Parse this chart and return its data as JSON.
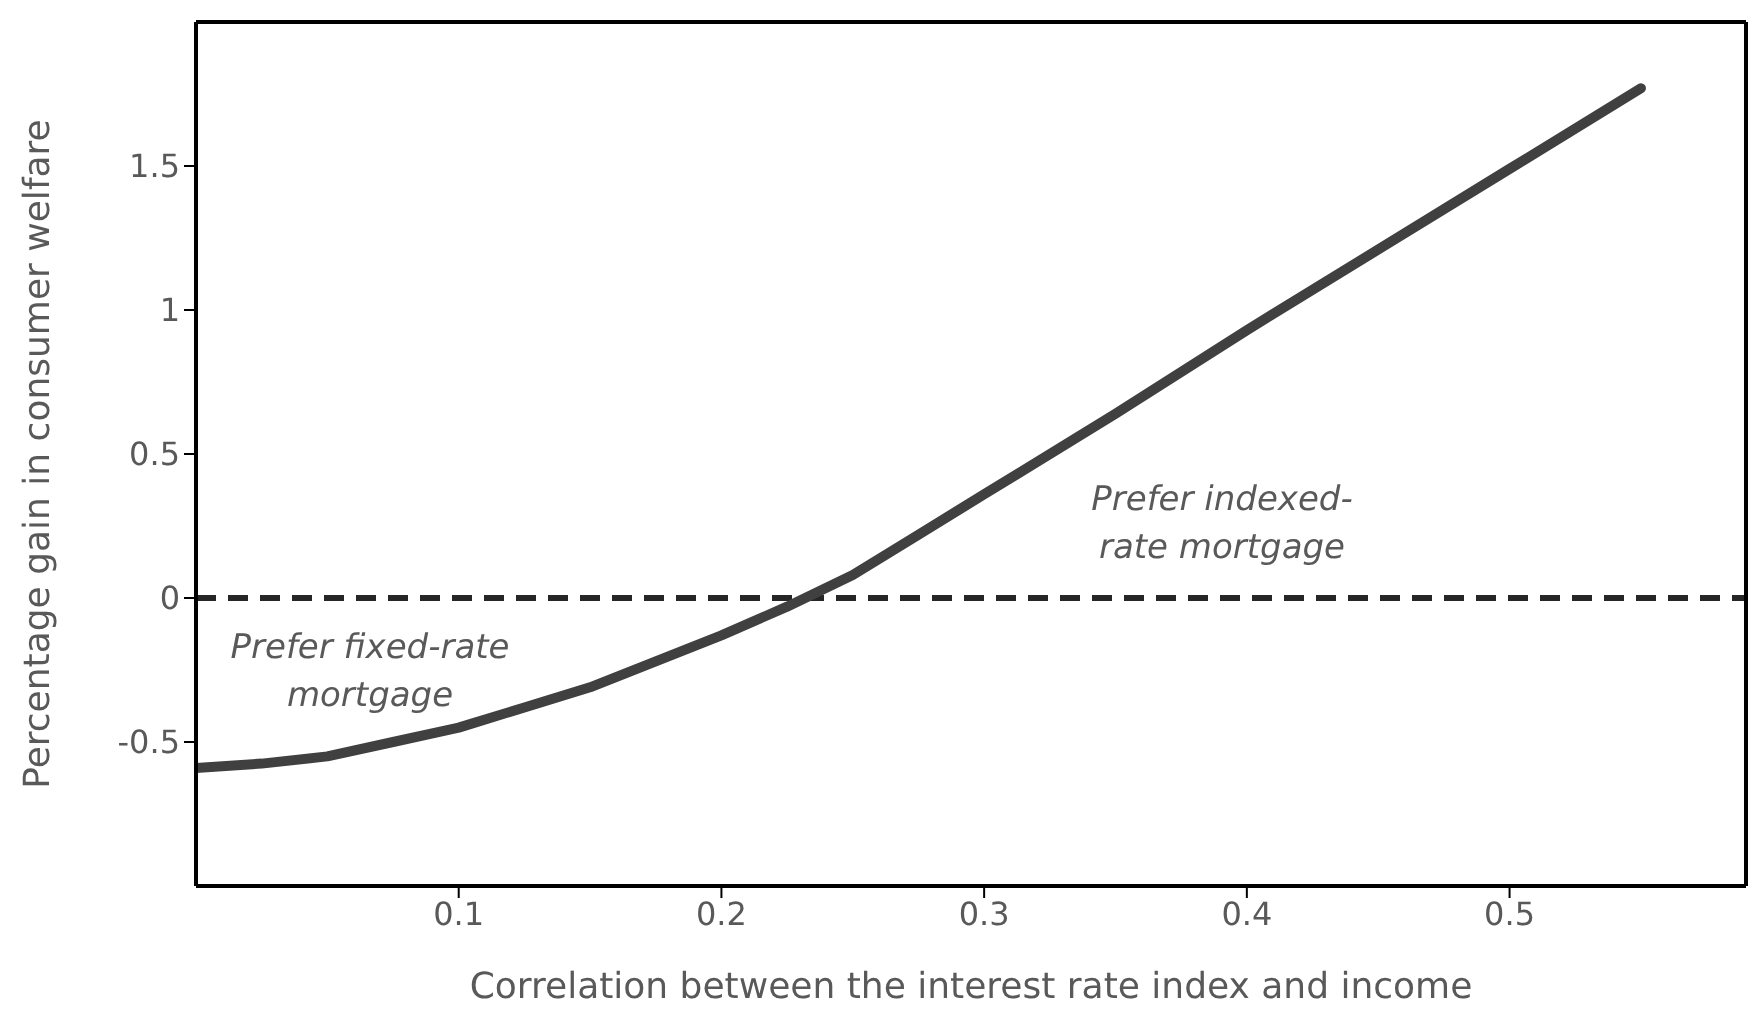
{
  "chart_data": {
    "type": "line",
    "xlabel": "Correlation between the interest rate index and income",
    "ylabel": "Percentage gain in consumer welfare",
    "x": [
      0,
      0.025,
      0.05,
      0.075,
      0.1,
      0.125,
      0.15,
      0.175,
      0.2,
      0.225,
      0.25,
      0.275,
      0.3,
      0.35,
      0.4,
      0.45,
      0.5,
      0.55
    ],
    "series": [
      {
        "color": "#404040",
        "values": [
          -0.59,
          -0.575,
          -0.55,
          -0.5,
          -0.45,
          -0.38,
          -0.31,
          -0.22,
          -0.13,
          -0.03,
          0.08,
          0.22,
          0.36,
          0.64,
          0.93,
          1.21,
          1.49,
          1.77
        ]
      }
    ],
    "xlim": [
      0,
      0.59
    ],
    "xticks": [
      0.1,
      0.2,
      0.3,
      0.4,
      0.5
    ],
    "ylim": [
      -1,
      2
    ],
    "yticks": [
      -0.5,
      0,
      0.5,
      1,
      1.5
    ],
    "ref_lines": [
      {
        "axis": "y",
        "value": 0,
        "color": "#262626",
        "line_style": "dashed"
      }
    ],
    "annotations": [
      "Prefer fixed-rate mortgage",
      "Prefer indexed-rate mortgage"
    ],
    "grid": false,
    "legend": false,
    "marker": "none",
    "line_style": "solid"
  }
}
